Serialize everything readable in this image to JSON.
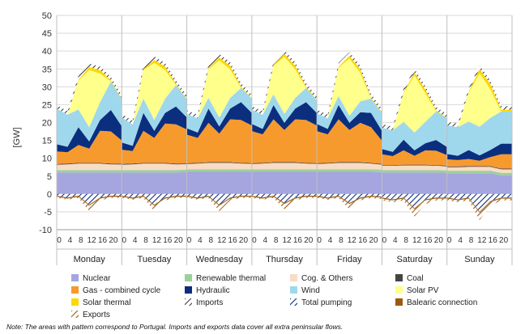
{
  "chart_data": {
    "type": "area",
    "title": "",
    "ylabel": "[GW]",
    "ylim": [
      -10,
      50
    ],
    "yticks": [
      50,
      45,
      40,
      35,
      30,
      25,
      20,
      15,
      10,
      5,
      0,
      -5,
      -10
    ],
    "x_hour_labels": [
      "0",
      "4",
      "8",
      "12",
      "16",
      "20"
    ],
    "days": [
      "Monday",
      "Tuesday",
      "Wednesday",
      "Thursday",
      "Friday",
      "Saturday",
      "Sunday"
    ],
    "hours": [
      0,
      4,
      8,
      12,
      16,
      20
    ],
    "series": [
      {
        "name": "Nuclear",
        "color": "#a5a5e0",
        "pattern": "solid",
        "values": [
          [
            6,
            6,
            6,
            6,
            6,
            6
          ],
          [
            6,
            6,
            6,
            6,
            6,
            6
          ],
          [
            6.2,
            6.2,
            6.2,
            6.2,
            6.2,
            6.2
          ],
          [
            6.2,
            6.2,
            6.2,
            6.2,
            6.2,
            6.2
          ],
          [
            6.2,
            6.2,
            6.2,
            6.2,
            6.2,
            6.2
          ],
          [
            6,
            6,
            6,
            6,
            6,
            6
          ],
          [
            5.8,
            5.8,
            5.8,
            5.8,
            5.8,
            5.2
          ]
        ]
      },
      {
        "name": "Renewable thermal",
        "color": "#9bd09b",
        "pattern": "solid",
        "values": [
          [
            0.7,
            0.7,
            0.7,
            0.7,
            0.7,
            0.7
          ],
          [
            0.7,
            0.7,
            0.7,
            0.7,
            0.7,
            0.7
          ],
          [
            0.7,
            0.7,
            0.7,
            0.7,
            0.7,
            0.7
          ],
          [
            0.7,
            0.7,
            0.7,
            0.7,
            0.7,
            0.7
          ],
          [
            0.7,
            0.7,
            0.7,
            0.7,
            0.7,
            0.7
          ],
          [
            0.7,
            0.7,
            0.7,
            0.7,
            0.7,
            0.7
          ],
          [
            0.7,
            0.7,
            0.7,
            0.7,
            0.7,
            0.7
          ]
        ]
      },
      {
        "name": "Cog. & Others",
        "color": "#f8dcc6",
        "pattern": "solid",
        "values": [
          [
            1.5,
            1.6,
            1.8,
            1.8,
            1.8,
            1.6
          ],
          [
            1.5,
            1.6,
            1.8,
            1.8,
            1.8,
            1.6
          ],
          [
            1.5,
            1.6,
            1.8,
            1.8,
            1.8,
            1.6
          ],
          [
            1.5,
            1.6,
            1.8,
            1.8,
            1.8,
            1.6
          ],
          [
            1.5,
            1.6,
            1.8,
            1.8,
            1.8,
            1.6
          ],
          [
            1.2,
            1.2,
            1.3,
            1.3,
            1.3,
            1.2
          ],
          [
            1.0,
            1.0,
            1.1,
            1.1,
            1.1,
            1.0
          ]
        ]
      },
      {
        "name": "Coal",
        "color": "#444444",
        "pattern": "solid",
        "values": [
          [
            0.2,
            0.2,
            0.2,
            0.2,
            0.2,
            0.2
          ],
          [
            0.2,
            0.2,
            0.2,
            0.2,
            0.2,
            0.2
          ],
          [
            0.2,
            0.2,
            0.2,
            0.2,
            0.2,
            0.2
          ],
          [
            0.2,
            0.2,
            0.2,
            0.2,
            0.2,
            0.2
          ],
          [
            0.2,
            0.2,
            0.2,
            0.2,
            0.2,
            0.2
          ],
          [
            0.2,
            0.2,
            0.2,
            0.2,
            0.2,
            0.2
          ],
          [
            0.2,
            0.2,
            0.2,
            0.2,
            0.2,
            0.2
          ]
        ]
      },
      {
        "name": "Gas - combined cycle",
        "color": "#f79a2e",
        "pattern": "solid",
        "values": [
          [
            3.5,
            3.2,
            5,
            4,
            9,
            9
          ],
          [
            4,
            3.5,
            9,
            7,
            11,
            11
          ],
          [
            8,
            7,
            11,
            8,
            12,
            12
          ],
          [
            9,
            8,
            12,
            9,
            12,
            12
          ],
          [
            9,
            8,
            12,
            9,
            11,
            10
          ],
          [
            3,
            2.5,
            4,
            2.5,
            4,
            4
          ],
          [
            2,
            1.8,
            2,
            1.5,
            2.5,
            4
          ]
        ]
      },
      {
        "name": "Hydraulic",
        "color": "#0b2f7e",
        "pattern": "solid",
        "values": [
          [
            2,
            1.5,
            5,
            2,
            3,
            6
          ],
          [
            2,
            1.5,
            5,
            2,
            3,
            5
          ],
          [
            1.8,
            1.5,
            4,
            2,
            3,
            5
          ],
          [
            2,
            1.5,
            4,
            2,
            3,
            5
          ],
          [
            2,
            1.5,
            4,
            2,
            3,
            4
          ],
          [
            1.5,
            1.2,
            3,
            1.5,
            2,
            3
          ],
          [
            1.5,
            1.2,
            2.5,
            1.5,
            2,
            3
          ]
        ]
      },
      {
        "name": "Wind",
        "color": "#9fd8ec",
        "pattern": "solid",
        "values": [
          [
            10,
            9,
            5,
            4,
            5,
            8
          ],
          [
            7,
            6,
            4,
            3,
            4,
            6
          ],
          [
            4,
            4,
            3,
            2.5,
            3,
            4
          ],
          [
            4,
            4,
            3,
            2.5,
            3,
            4
          ],
          [
            3,
            3,
            2.5,
            2,
            3,
            4
          ],
          [
            6,
            6,
            5,
            5,
            6,
            8
          ],
          [
            8,
            8,
            8,
            8,
            9,
            9
          ]
        ]
      },
      {
        "name": "Solar PV",
        "color": "#ffff8c",
        "pattern": "solid",
        "values": [
          [
            0,
            0,
            8,
            16,
            8,
            0
          ],
          [
            0,
            0,
            8,
            16,
            8,
            0
          ],
          [
            0,
            0,
            8,
            16,
            8,
            0
          ],
          [
            0,
            0,
            8,
            16,
            8,
            0
          ],
          [
            0,
            0,
            8,
            16,
            8,
            0
          ],
          [
            0,
            0,
            8,
            16,
            8,
            0
          ],
          [
            0,
            0,
            8,
            15,
            8,
            0
          ]
        ]
      },
      {
        "name": "Solar thermal",
        "color": "#ffd700",
        "pattern": "solid",
        "values": [
          [
            0,
            0,
            0.3,
            0.8,
            1,
            0.3
          ],
          [
            0,
            0,
            0.3,
            0.8,
            1,
            0.3
          ],
          [
            0,
            0,
            0.3,
            0.8,
            1,
            0.3
          ],
          [
            0,
            0,
            0.3,
            0.8,
            1,
            0.3
          ],
          [
            0,
            0,
            0.3,
            0.8,
            1,
            0.3
          ],
          [
            0,
            0,
            0.3,
            0.8,
            1,
            0.3
          ],
          [
            0,
            0,
            0.3,
            1.2,
            1.5,
            0.5
          ]
        ]
      },
      {
        "name": "Imports",
        "color": "#ffffff",
        "pattern": "hatch-dark",
        "values": [
          [
            1,
            1,
            1,
            1,
            1,
            1
          ],
          [
            1,
            1,
            1,
            1,
            1,
            1
          ],
          [
            1,
            1,
            1,
            1,
            1,
            1
          ],
          [
            1,
            1,
            1,
            1,
            1,
            1
          ],
          [
            1,
            1,
            1,
            1,
            1,
            1
          ],
          [
            1,
            1,
            1,
            1,
            1,
            1
          ],
          [
            1,
            1,
            1,
            1,
            1,
            1
          ]
        ]
      }
    ],
    "negative_series": [
      {
        "name": "Total pumping",
        "color": "#0b2f7e",
        "pattern": "hatch-blue",
        "values": [
          [
            -0.5,
            -1,
            -0.5,
            -3,
            -1,
            -0.5
          ],
          [
            -0.5,
            -1,
            -0.5,
            -3,
            -1,
            -0.5
          ],
          [
            -0.5,
            -1,
            -0.5,
            -3,
            -1,
            -0.5
          ],
          [
            -0.5,
            -1,
            -0.5,
            -2.5,
            -1,
            -0.5
          ],
          [
            -0.5,
            -1,
            -0.5,
            -2.5,
            -1,
            -0.5
          ],
          [
            -1,
            -1.5,
            -1,
            -4,
            -1.5,
            -1
          ],
          [
            -1,
            -1.5,
            -1,
            -5,
            -2,
            -1
          ]
        ]
      },
      {
        "name": "Balearic connection",
        "color": "#9c5a10",
        "pattern": "solid",
        "values": [
          [
            -0.3,
            -0.3,
            -0.3,
            -0.3,
            -0.3,
            -0.3
          ],
          [
            -0.3,
            -0.3,
            -0.3,
            -0.3,
            -0.3,
            -0.3
          ],
          [
            -0.3,
            -0.3,
            -0.3,
            -0.3,
            -0.3,
            -0.3
          ],
          [
            -0.3,
            -0.3,
            -0.3,
            -0.3,
            -0.3,
            -0.3
          ],
          [
            -0.3,
            -0.3,
            -0.3,
            -0.3,
            -0.3,
            -0.3
          ],
          [
            -0.3,
            -0.3,
            -0.3,
            -0.3,
            -0.3,
            -0.3
          ],
          [
            -0.3,
            -0.3,
            -0.3,
            -0.3,
            -0.3,
            -0.3
          ]
        ]
      },
      {
        "name": "Exports",
        "color": "#ffffff",
        "pattern": "hatch-brown",
        "values": [
          [
            -0.3,
            -0.3,
            -0.3,
            -1.5,
            -0.5,
            -0.3
          ],
          [
            -0.3,
            -0.3,
            -0.3,
            -1.5,
            -0.5,
            -0.3
          ],
          [
            -0.3,
            -0.3,
            -0.3,
            -1.5,
            -0.5,
            -0.3
          ],
          [
            -0.3,
            -0.3,
            -0.3,
            -1.5,
            -0.5,
            -0.3
          ],
          [
            -0.3,
            -0.3,
            -0.3,
            -1.5,
            -0.5,
            -0.3
          ],
          [
            -0.5,
            -0.5,
            -0.5,
            -2,
            -1,
            -0.5
          ],
          [
            -0.5,
            -0.5,
            -0.5,
            -2,
            -1,
            -0.5
          ]
        ]
      }
    ]
  },
  "legend": [
    {
      "name": "Nuclear",
      "color": "#a5a5e0",
      "pattern": "solid"
    },
    {
      "name": "Renewable thermal",
      "color": "#9bd09b",
      "pattern": "solid"
    },
    {
      "name": "Cog. & Others",
      "color": "#f8dcc6",
      "pattern": "solid"
    },
    {
      "name": "Coal",
      "color": "#444444",
      "pattern": "solid"
    },
    {
      "name": "Gas - combined cycle",
      "color": "#f79a2e",
      "pattern": "solid"
    },
    {
      "name": "Hydraulic",
      "color": "#0b2f7e",
      "pattern": "solid"
    },
    {
      "name": "Wind",
      "color": "#9fd8ec",
      "pattern": "solid"
    },
    {
      "name": "Solar PV",
      "color": "#ffff8c",
      "pattern": "solid"
    },
    {
      "name": "Solar thermal",
      "color": "#ffd700",
      "pattern": "solid"
    },
    {
      "name": "Imports",
      "color": "#ffffff",
      "pattern": "hatch-dark"
    },
    {
      "name": "Total pumping",
      "color": "#0b2f7e",
      "pattern": "hatch-blue"
    },
    {
      "name": "Balearic connection",
      "color": "#9c5a10",
      "pattern": "solid"
    },
    {
      "name": "Exports",
      "color": "#ffffff",
      "pattern": "hatch-brown"
    }
  ],
  "note": "Note: The areas with pattern correspond to Portugal. Imports and exports data cover all extra peninsular flows."
}
